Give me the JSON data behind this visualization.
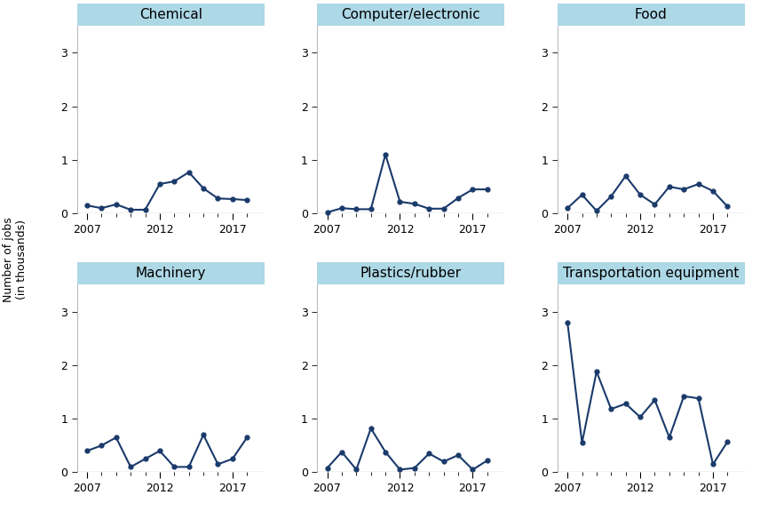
{
  "line_color": "#1a3a6b",
  "marker_color": "#1a3a6b",
  "bg_color": "#ffffff",
  "ylabel_top": "Number of jobs",
  "ylabel_bottom": "(in thousands)",
  "ylim": [
    0,
    3.5
  ],
  "yticks": [
    0,
    1,
    2,
    3
  ],
  "subplots": [
    {
      "title": "Chemical",
      "years": [
        2007,
        2008,
        2009,
        2010,
        2011,
        2012,
        2013,
        2014,
        2015,
        2016,
        2017,
        2018
      ],
      "values": [
        0.15,
        0.1,
        0.17,
        0.07,
        0.07,
        0.55,
        0.6,
        0.77,
        0.47,
        0.28,
        0.27,
        0.25
      ]
    },
    {
      "title": "Computer/electronic",
      "years": [
        2007,
        2008,
        2009,
        2010,
        2011,
        2012,
        2013,
        2014,
        2015,
        2016,
        2017,
        2018
      ],
      "values": [
        0.02,
        0.1,
        0.08,
        0.08,
        1.1,
        0.22,
        0.18,
        0.09,
        0.09,
        0.29,
        0.45,
        0.45
      ]
    },
    {
      "title": "Food",
      "years": [
        2007,
        2008,
        2009,
        2010,
        2011,
        2012,
        2013,
        2014,
        2015,
        2016,
        2017,
        2018
      ],
      "values": [
        0.1,
        0.35,
        0.05,
        0.32,
        0.7,
        0.35,
        0.17,
        0.5,
        0.45,
        0.55,
        0.42,
        0.13
      ]
    },
    {
      "title": "Machinery",
      "years": [
        2007,
        2008,
        2009,
        2010,
        2011,
        2012,
        2013,
        2014,
        2015,
        2016,
        2017,
        2018
      ],
      "values": [
        0.4,
        0.5,
        0.65,
        0.1,
        0.25,
        0.4,
        0.1,
        0.1,
        0.7,
        0.15,
        0.25,
        0.65
      ]
    },
    {
      "title": "Plastics/rubber",
      "years": [
        2007,
        2008,
        2009,
        2010,
        2011,
        2012,
        2013,
        2014,
        2015,
        2016,
        2017,
        2018
      ],
      "values": [
        0.08,
        0.38,
        0.05,
        0.82,
        0.38,
        0.05,
        0.08,
        0.35,
        0.2,
        0.32,
        0.05,
        0.22
      ]
    },
    {
      "title": "Transportation equipment",
      "years": [
        2007,
        2008,
        2009,
        2010,
        2011,
        2012,
        2013,
        2014,
        2015,
        2016,
        2017,
        2018
      ],
      "values": [
        2.8,
        0.55,
        1.88,
        1.18,
        1.28,
        1.03,
        1.35,
        0.65,
        1.42,
        1.38,
        0.15,
        0.57
      ]
    }
  ],
  "header_bg": "#add8e6",
  "header_fontsize": 11,
  "tick_fontsize": 9,
  "ylabel_fontsize": 9,
  "linewidth": 1.5,
  "markersize": 3.5,
  "xticks_major": [
    2007,
    2012,
    2017
  ],
  "xticks_minor": [
    2008,
    2009,
    2010,
    2011,
    2013,
    2014,
    2015,
    2016,
    2018
  ],
  "xlim": [
    2006.3,
    2019.2
  ]
}
